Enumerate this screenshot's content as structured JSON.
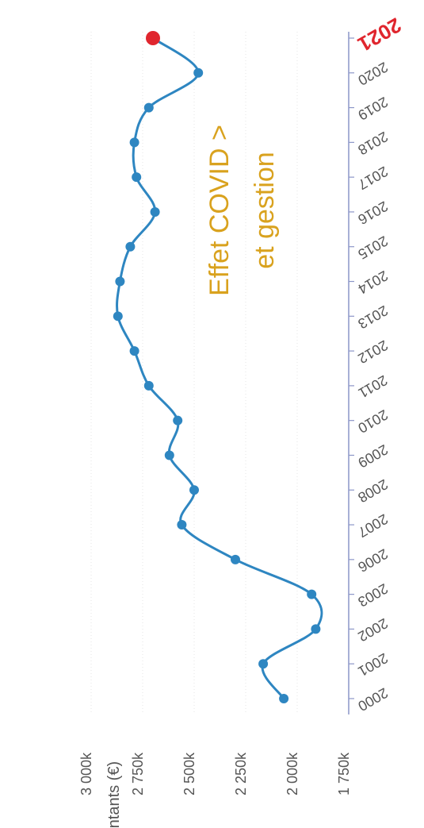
{
  "chart_data": {
    "type": "line",
    "ylabel": "Montants (€)",
    "ylim": [
      1750,
      3000
    ],
    "y_ticks": [
      "1 750k",
      "2 000k",
      "2 250k",
      "2 500k",
      "2 750k",
      "3 000k"
    ],
    "y_tick_values": [
      1750,
      2000,
      2250,
      2500,
      2750,
      3000
    ],
    "grid": true,
    "x_tick_labels": [
      "2000",
      "2001",
      "2002",
      "2003",
      "2006",
      "2007",
      "2008",
      "2009",
      "2010",
      "2011",
      "2012",
      "2013",
      "2014",
      "2015",
      "2016",
      "2017",
      "2018",
      "2019",
      "2020",
      "2021"
    ],
    "series": [
      {
        "values": [
          2065,
          2165,
          1910,
          1930,
          2300,
          2560,
          2500,
          2620,
          2580,
          2720,
          2790,
          2870,
          2860,
          2810,
          2690,
          2780,
          2790,
          2720,
          2480,
          2700
        ]
      }
    ],
    "highlight": {
      "index": 19,
      "label": "2021",
      "color": "#e0262e"
    },
    "annotation": {
      "lines": [
        "Effet COVID >",
        "et gestion"
      ],
      "color": "#d9a21e"
    },
    "colors": {
      "line": "#2e86c1",
      "point": "#2e86c1",
      "axis": "#8c96c8",
      "grid": "#e6e6e6"
    }
  }
}
